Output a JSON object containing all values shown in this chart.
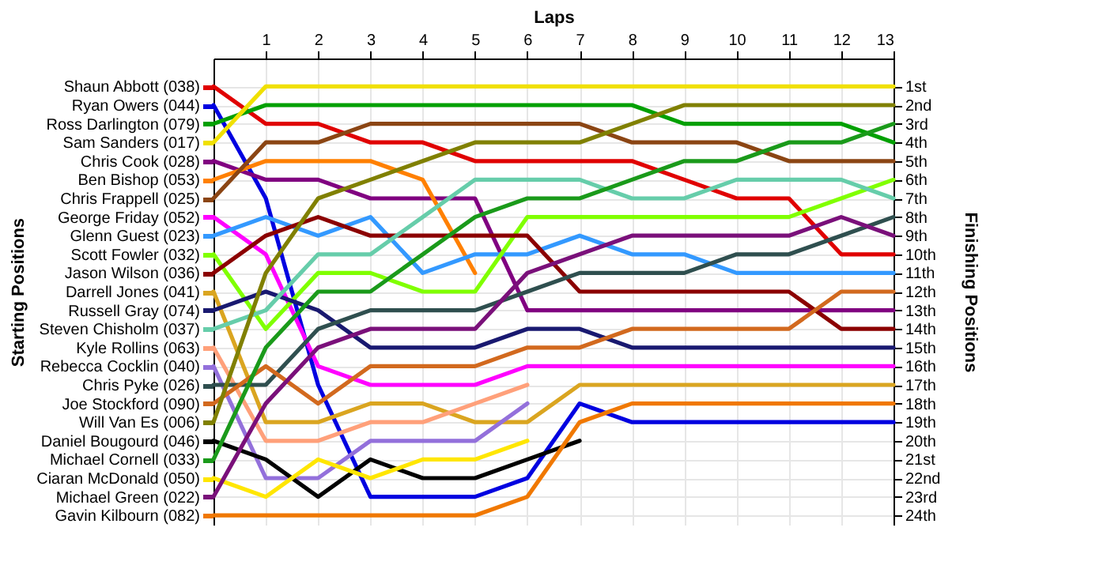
{
  "chart_data": {
    "type": "line",
    "xlabel": "Laps",
    "legend_title": "Starting Positions",
    "y2label": "Finishing Positions",
    "x": [
      0,
      1,
      2,
      3,
      4,
      5,
      6,
      7,
      8,
      9,
      10,
      11,
      12,
      13
    ],
    "xlim": [
      0,
      13
    ],
    "xticks": [
      1,
      2,
      3,
      4,
      5,
      6,
      7,
      8,
      9,
      10,
      11,
      12,
      13
    ],
    "y2lim": [
      24.5,
      -0.5
    ],
    "y2ticks": [
      {
        "value": 1,
        "label": "1st"
      },
      {
        "value": 2,
        "label": "2nd"
      },
      {
        "value": 3,
        "label": "3rd"
      },
      {
        "value": 4,
        "label": "4th"
      },
      {
        "value": 5,
        "label": "5th"
      },
      {
        "value": 6,
        "label": "6th"
      },
      {
        "value": 7,
        "label": "7th"
      },
      {
        "value": 8,
        "label": "8th"
      },
      {
        "value": 9,
        "label": "9th"
      },
      {
        "value": 10,
        "label": "10th"
      },
      {
        "value": 11,
        "label": "11th"
      },
      {
        "value": 12,
        "label": "12th"
      },
      {
        "value": 13,
        "label": "13th"
      },
      {
        "value": 14,
        "label": "14th"
      },
      {
        "value": 15,
        "label": "15th"
      },
      {
        "value": 16,
        "label": "16th"
      },
      {
        "value": 17,
        "label": "17th"
      },
      {
        "value": 18,
        "label": "18th"
      },
      {
        "value": 19,
        "label": "19th"
      },
      {
        "value": 20,
        "label": "20th"
      },
      {
        "value": 21,
        "label": "21st"
      },
      {
        "value": 22,
        "label": "22nd"
      },
      {
        "value": 23,
        "label": "23rd"
      },
      {
        "value": 24,
        "label": "24th"
      }
    ],
    "grid": true,
    "legend": "left",
    "series": [
      {
        "name": "Shaun Abbott (038)",
        "axis": "y2",
        "color": "#e00000",
        "values": [
          1,
          3,
          3,
          4,
          4,
          5,
          5,
          5,
          5,
          6,
          7,
          7,
          10,
          10
        ]
      },
      {
        "name": "Ryan Owers (044)",
        "axis": "y2",
        "color": "#0000e0",
        "values": [
          2,
          7,
          17,
          23,
          23,
          23,
          22,
          18,
          19,
          19,
          19,
          19,
          19,
          19
        ]
      },
      {
        "name": "Ross Darlington (079)",
        "axis": "y2",
        "color": "#00a000",
        "values": [
          3,
          2,
          2,
          2,
          2,
          2,
          2,
          2,
          2,
          3,
          3,
          3,
          3,
          4
        ]
      },
      {
        "name": "Sam Sanders (017)",
        "axis": "y2",
        "color": "#f0e000",
        "values": [
          4,
          1,
          1,
          1,
          1,
          1,
          1,
          1,
          1,
          1,
          1,
          1,
          1,
          1
        ]
      },
      {
        "name": "Chris Cook (028)",
        "axis": "y2",
        "color": "#800080",
        "values": [
          5,
          6,
          6,
          7,
          7,
          7,
          13,
          13,
          13,
          13,
          13,
          13,
          13,
          13
        ]
      },
      {
        "name": "Ben Bishop (053)",
        "axis": "y2",
        "color": "#ff8000",
        "values": [
          6,
          5,
          5,
          5,
          6,
          11,
          null,
          null,
          null,
          null,
          null,
          null,
          null,
          null
        ]
      },
      {
        "name": "Chris Frappell (025)",
        "axis": "y2",
        "color": "#8b4513",
        "values": [
          7,
          4,
          4,
          3,
          3,
          3,
          3,
          3,
          4,
          4,
          4,
          5,
          5,
          5
        ]
      },
      {
        "name": "George Friday (052)",
        "axis": "y2",
        "color": "#ff00ff",
        "values": [
          8,
          10,
          16,
          17,
          17,
          17,
          16,
          16,
          16,
          16,
          16,
          16,
          16,
          16
        ]
      },
      {
        "name": "Glenn Guest (023)",
        "axis": "y2",
        "color": "#3399ff",
        "values": [
          9,
          8,
          9,
          8,
          11,
          10,
          10,
          9,
          10,
          10,
          11,
          11,
          11,
          11
        ]
      },
      {
        "name": "Scott Fowler (032)",
        "axis": "y2",
        "color": "#80ff00",
        "values": [
          10,
          14,
          11,
          11,
          12,
          12,
          8,
          8,
          8,
          8,
          8,
          8,
          7,
          6
        ]
      },
      {
        "name": "Jason Wilson (036)",
        "axis": "y2",
        "color": "#8b0000",
        "values": [
          11,
          9,
          8,
          9,
          9,
          9,
          9,
          12,
          12,
          12,
          12,
          12,
          14,
          14
        ]
      },
      {
        "name": "Darrell Jones (041)",
        "axis": "y2",
        "color": "#daa520",
        "values": [
          12,
          19,
          19,
          18,
          18,
          19,
          19,
          17,
          17,
          17,
          17,
          17,
          17,
          17
        ]
      },
      {
        "name": "Russell Gray (074)",
        "axis": "y2",
        "color": "#191970",
        "values": [
          13,
          12,
          13,
          15,
          15,
          15,
          14,
          14,
          15,
          15,
          15,
          15,
          15,
          15
        ]
      },
      {
        "name": "Steven Chisholm (037)",
        "axis": "y2",
        "color": "#66cdaa",
        "values": [
          14,
          13,
          10,
          10,
          8,
          6,
          6,
          6,
          7,
          7,
          6,
          6,
          6,
          7
        ]
      },
      {
        "name": "Kyle Rollins (063)",
        "axis": "y2",
        "color": "#ffa07a",
        "values": [
          15,
          20,
          20,
          19,
          19,
          18,
          17,
          null,
          null,
          null,
          null,
          null,
          null,
          null
        ]
      },
      {
        "name": "Rebecca Cocklin (040)",
        "axis": "y2",
        "color": "#9370db",
        "values": [
          16,
          22,
          22,
          20,
          20,
          20,
          18,
          null,
          null,
          null,
          null,
          null,
          null,
          null
        ]
      },
      {
        "name": "Chris Pyke (026)",
        "axis": "y2",
        "color": "#2f4f4f",
        "values": [
          17,
          17,
          14,
          13,
          13,
          13,
          12,
          11,
          11,
          11,
          10,
          10,
          9,
          8
        ]
      },
      {
        "name": "Joe Stockford (090)",
        "axis": "y2",
        "color": "#d2691e",
        "values": [
          18,
          16,
          18,
          16,
          16,
          16,
          15,
          15,
          14,
          14,
          14,
          14,
          12,
          12
        ]
      },
      {
        "name": "Will Van Es (006)",
        "axis": "y2",
        "color": "#808000",
        "values": [
          19,
          11,
          7,
          6,
          5,
          4,
          4,
          4,
          3,
          2,
          2,
          2,
          2,
          2
        ]
      },
      {
        "name": "Daniel Bougourd (046)",
        "axis": "y2",
        "color": "#000000",
        "values": [
          20,
          21,
          23,
          21,
          22,
          22,
          21,
          20,
          null,
          null,
          null,
          null,
          null,
          null
        ]
      },
      {
        "name": "Michael Cornell (033)",
        "axis": "y2",
        "color": "#1a9a1a",
        "values": [
          21,
          15,
          12,
          12,
          10,
          8,
          7,
          7,
          6,
          5,
          5,
          4,
          4,
          3
        ]
      },
      {
        "name": "Ciaran McDonald (050)",
        "axis": "y2",
        "color": "#ffe600",
        "values": [
          22,
          23,
          21,
          22,
          21,
          21,
          20,
          null,
          null,
          null,
          null,
          null,
          null,
          null
        ]
      },
      {
        "name": "Michael Green (022)",
        "axis": "y2",
        "color": "#7a107a",
        "values": [
          23,
          18,
          15,
          14,
          14,
          14,
          11,
          10,
          9,
          9,
          9,
          9,
          8,
          9
        ]
      },
      {
        "name": "Gavin Kilbourn (082)",
        "axis": "y2",
        "color": "#f07800",
        "values": [
          24,
          24,
          24,
          24,
          24,
          24,
          23,
          19,
          18,
          18,
          18,
          18,
          18,
          18
        ]
      }
    ]
  }
}
